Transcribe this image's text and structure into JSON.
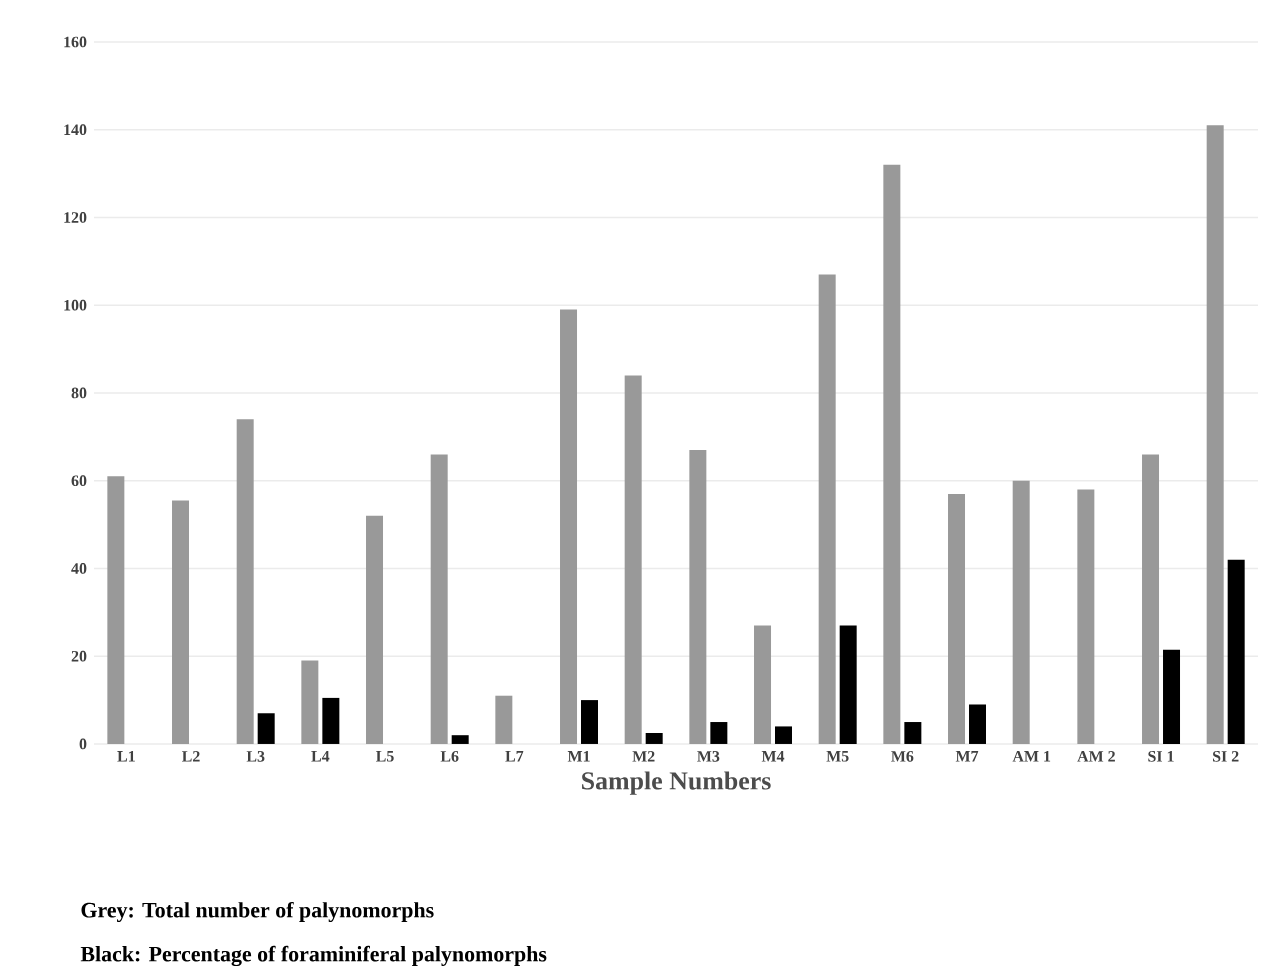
{
  "chart_data": {
    "type": "bar",
    "xlabel": "Sample Numbers",
    "categories": [
      "L1",
      "L2",
      "L3",
      "L4",
      "L5",
      "L6",
      "L7",
      "M1",
      "M2",
      "M3",
      "M4",
      "M5",
      "M6",
      "M7",
      "AM 1",
      "AM 2",
      "SI 1",
      "SI 2"
    ],
    "series": [
      {
        "color": "#999999",
        "values": [
          61,
          55.5,
          74,
          19,
          52,
          66,
          11,
          99,
          84,
          67,
          27,
          107,
          132,
          57,
          60,
          58,
          66,
          141
        ]
      },
      {
        "color": "#000000",
        "values": [
          null,
          null,
          7,
          10.5,
          null,
          2,
          null,
          10,
          2.5,
          5,
          4,
          27,
          5,
          9,
          null,
          null,
          21.5,
          42
        ]
      }
    ],
    "ylim": [
      0,
      160
    ],
    "yticks": [
      0,
      20,
      40,
      60,
      80,
      100,
      120,
      140,
      160
    ],
    "grid": "y",
    "annotations": [
      "Grey: Total number of palynomorphs",
      "Black: Percentage of foraminiferal palynomorphs"
    ]
  }
}
